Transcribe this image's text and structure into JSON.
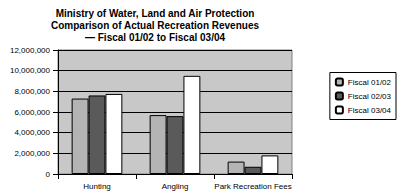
{
  "chart_data": {
    "type": "bar",
    "title": "Ministry of Water, Land and Air Protection\nComparison of Actual Recreation Revenues\n— Fiscal 01/02 to Fiscal 03/04",
    "categories": [
      "Hunting",
      "Angling",
      "Park Recreation Fees"
    ],
    "series": [
      {
        "name": "Fiscal 01/02",
        "color": "#b4b4b4",
        "values": [
          7300000,
          5700000,
          1200000
        ]
      },
      {
        "name": "Fiscal 02/03",
        "color": "#5a5a5a",
        "values": [
          7600000,
          5600000,
          700000
        ]
      },
      {
        "name": "Fiscal 03/04",
        "color": "#ffffff",
        "values": [
          7750000,
          9500000,
          1800000
        ]
      }
    ],
    "ylim": [
      0,
      12000000
    ],
    "yticks": [
      0,
      {
        "value": 2000000,
        "label": "2,000,000"
      },
      {
        "value": 4000000,
        "label": "4,000,000"
      },
      {
        "value": 6000000,
        "label": "6,000,000"
      },
      {
        "value": 8000000,
        "label": "8,000,000"
      },
      {
        "value": 10000000,
        "label": "10,000,000"
      },
      {
        "value": 12000000,
        "label": "12,000,000"
      }
    ],
    "grid": true,
    "legend": "right"
  }
}
